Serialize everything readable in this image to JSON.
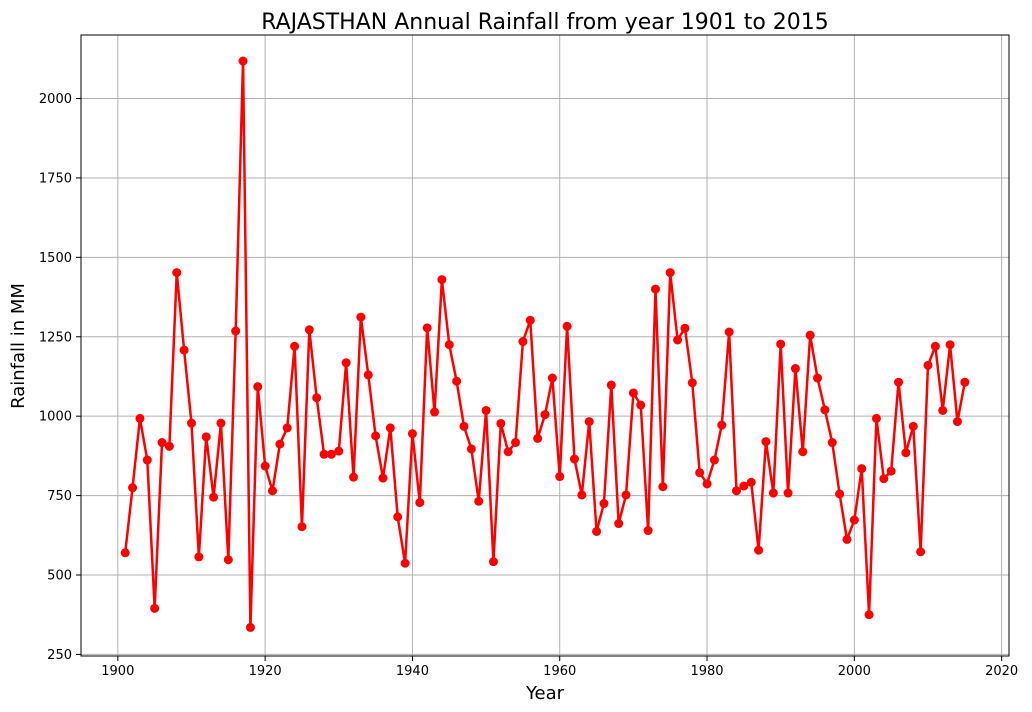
{
  "chart_data": {
    "type": "line",
    "title": "RAJASTHAN Annual Rainfall from year 1901 to 2015",
    "xlabel": "Year",
    "ylabel": "Rainfall in MM",
    "xlim": [
      1895,
      2021
    ],
    "ylim": [
      245,
      2200
    ],
    "xticks": [
      1900,
      1920,
      1940,
      1960,
      1980,
      2000,
      2020
    ],
    "yticks": [
      250,
      500,
      750,
      1000,
      1250,
      1500,
      1750,
      2000
    ],
    "grid": true,
    "series": [
      {
        "color": "#ff0000",
        "marker": "circle",
        "x": [
          1901,
          1902,
          1903,
          1904,
          1905,
          1906,
          1907,
          1908,
          1909,
          1910,
          1911,
          1912,
          1913,
          1914,
          1915,
          1916,
          1917,
          1918,
          1919,
          1920,
          1921,
          1922,
          1923,
          1924,
          1925,
          1926,
          1927,
          1928,
          1929,
          1930,
          1931,
          1932,
          1933,
          1934,
          1935,
          1936,
          1937,
          1938,
          1939,
          1940,
          1941,
          1942,
          1943,
          1944,
          1945,
          1946,
          1947,
          1948,
          1949,
          1950,
          1951,
          1952,
          1953,
          1954,
          1955,
          1956,
          1957,
          1958,
          1959,
          1960,
          1961,
          1962,
          1963,
          1964,
          1965,
          1966,
          1967,
          1968,
          1969,
          1970,
          1971,
          1972,
          1973,
          1974,
          1975,
          1976,
          1977,
          1978,
          1979,
          1980,
          1981,
          1982,
          1983,
          1984,
          1985,
          1986,
          1987,
          1988,
          1989,
          1990,
          1991,
          1992,
          1993,
          1994,
          1995,
          1996,
          1997,
          1998,
          1999,
          2000,
          2001,
          2002,
          2003,
          2004,
          2005,
          2006,
          2007,
          2008,
          2009,
          2010,
          2011,
          2012,
          2013,
          2014,
          2015
        ],
        "values": [
          570,
          775,
          993,
          862,
          395,
          917,
          905,
          1452,
          1208,
          978,
          557,
          935,
          745,
          978,
          548,
          1268,
          2118,
          335,
          1093,
          843,
          765,
          912,
          963,
          1220,
          652,
          1272,
          1058,
          880,
          880,
          890,
          1168,
          808,
          1312,
          1130,
          938,
          805,
          963,
          683,
          537,
          945,
          728,
          1278,
          1013,
          1430,
          1225,
          1110,
          968,
          897,
          732,
          1018,
          542,
          977,
          888,
          917,
          1235,
          1302,
          930,
          1005,
          1120,
          810,
          1283,
          865,
          752,
          983,
          637,
          725,
          1098,
          662,
          752,
          1073,
          1035,
          640,
          1400,
          778,
          1452,
          1240,
          1277,
          1105,
          822,
          787,
          862,
          972,
          1265,
          765,
          780,
          792,
          578,
          920,
          758,
          1227,
          758,
          1150,
          888,
          1255,
          1120,
          1020,
          917,
          755,
          612,
          673,
          835,
          375,
          993,
          803,
          827,
          1107,
          885,
          968,
          573,
          1160,
          1220,
          1018,
          1225,
          983,
          1107
        ]
      }
    ]
  }
}
